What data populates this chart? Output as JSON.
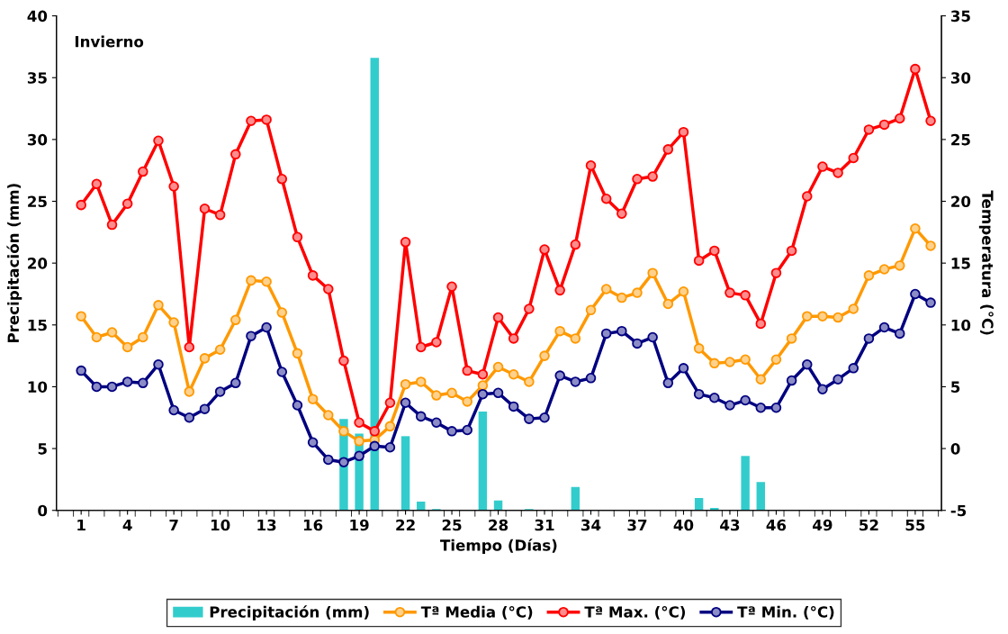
{
  "chart_data": {
    "type": "line",
    "title": "Invierno",
    "xlabel": "Tiempo (Días)",
    "ylabel": "Precipitación (mm)",
    "y2label": "Temperatura (°C)",
    "x": [
      1,
      2,
      3,
      4,
      5,
      6,
      7,
      8,
      9,
      10,
      11,
      12,
      13,
      14,
      15,
      16,
      17,
      18,
      19,
      20,
      21,
      22,
      23,
      24,
      25,
      26,
      27,
      28,
      29,
      30,
      31,
      32,
      33,
      34,
      35,
      36,
      37,
      38,
      39,
      40,
      41,
      42,
      43,
      44,
      45,
      46,
      47,
      48,
      49,
      50,
      51,
      52,
      53,
      54,
      55,
      56
    ],
    "xlim": [
      -0.6,
      56.7
    ],
    "xticks": [
      1,
      4,
      7,
      10,
      13,
      16,
      19,
      22,
      25,
      28,
      31,
      34,
      37,
      40,
      43,
      46,
      49,
      52,
      55
    ],
    "ylim": [
      0,
      40
    ],
    "yticks": [
      0,
      5,
      10,
      15,
      20,
      25,
      30,
      35,
      40
    ],
    "y2lim": [
      -5,
      35
    ],
    "y2ticks": [
      -5,
      0,
      5,
      10,
      15,
      20,
      25,
      30,
      35
    ],
    "legend": "bottom",
    "marker": "circle",
    "grid": false,
    "series": [
      {
        "name": "Precipitación (mm)",
        "type": "bar",
        "color": "#33cccc",
        "values": [
          0,
          0,
          0,
          0,
          0,
          0,
          0,
          0,
          0,
          0,
          0,
          0,
          0,
          0,
          0,
          0,
          0,
          7.4,
          6.2,
          36.6,
          0,
          6.0,
          0.7,
          0.1,
          0,
          0,
          8.0,
          0.8,
          0,
          0.1,
          0,
          0,
          1.9,
          0,
          0,
          0,
          0,
          0,
          0,
          0,
          1.0,
          0.2,
          0,
          4.4,
          2.3,
          0,
          0,
          0,
          0,
          0,
          0,
          0,
          0,
          0,
          0,
          0
        ]
      },
      {
        "name": "Tª Media (°C)",
        "axis": "y2",
        "color": "#ff9900",
        "values": [
          10.7,
          9.0,
          9.4,
          8.2,
          9.0,
          11.6,
          10.2,
          4.6,
          7.3,
          8.0,
          10.4,
          13.6,
          13.5,
          11.0,
          7.7,
          4.0,
          2.7,
          1.4,
          0.6,
          0.7,
          1.8,
          5.2,
          5.4,
          4.3,
          4.5,
          3.8,
          5.1,
          6.6,
          6.0,
          5.4,
          7.5,
          9.5,
          8.9,
          11.2,
          12.9,
          12.2,
          12.6,
          14.2,
          11.7,
          12.7,
          8.1,
          6.9,
          7.0,
          7.2,
          5.6,
          7.2,
          8.9,
          10.7,
          10.7,
          10.6,
          11.3,
          14.0,
          14.5,
          14.8,
          17.8,
          16.4
        ]
      },
      {
        "name": "Tª Max. (°C)",
        "axis": "y2",
        "color": "#ff0000",
        "values": [
          19.7,
          21.4,
          18.1,
          19.8,
          22.4,
          24.9,
          21.2,
          8.2,
          19.4,
          18.9,
          23.8,
          26.5,
          26.6,
          21.8,
          17.1,
          14.0,
          12.9,
          7.1,
          2.1,
          1.4,
          3.7,
          16.7,
          8.2,
          8.6,
          13.1,
          6.3,
          6.0,
          10.6,
          8.9,
          11.3,
          16.1,
          12.8,
          16.5,
          22.9,
          20.2,
          19.0,
          21.8,
          22.0,
          24.2,
          25.6,
          15.2,
          16.0,
          12.6,
          12.4,
          10.1,
          14.2,
          16.0,
          20.4,
          22.8,
          22.3,
          23.5,
          25.8,
          26.2,
          26.7,
          30.7,
          26.5
        ]
      },
      {
        "name": "Tª Min. (°C)",
        "axis": "y2",
        "color": "#000080",
        "values": [
          6.3,
          5.0,
          5.0,
          5.4,
          5.3,
          6.8,
          3.1,
          2.5,
          3.2,
          4.6,
          5.3,
          9.1,
          9.8,
          6.2,
          3.5,
          0.5,
          -0.9,
          -1.1,
          -0.6,
          0.2,
          0.1,
          3.7,
          2.6,
          2.1,
          1.4,
          1.5,
          4.4,
          4.5,
          3.4,
          2.4,
          2.5,
          5.9,
          5.4,
          5.7,
          9.3,
          9.5,
          8.5,
          9.0,
          5.3,
          6.5,
          4.4,
          4.1,
          3.5,
          3.9,
          3.3,
          3.3,
          5.5,
          6.8,
          4.8,
          5.6,
          6.5,
          8.9,
          9.8,
          9.3,
          12.5,
          11.8
        ]
      }
    ]
  }
}
